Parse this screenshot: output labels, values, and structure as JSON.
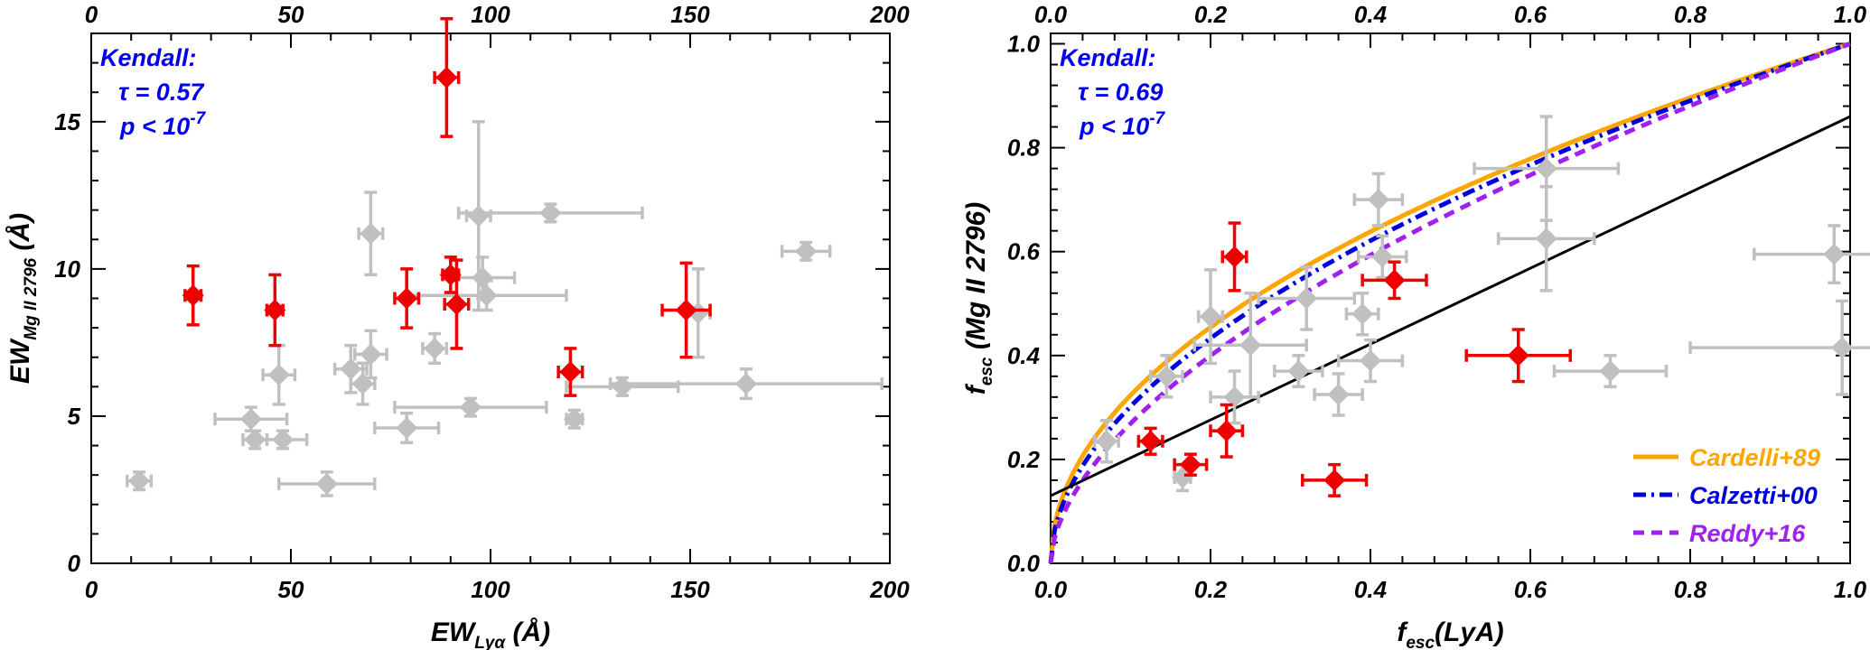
{
  "colors": {
    "red": "#ee0000",
    "gray": "#c0c0c0",
    "orange": "#ffa500",
    "blue": "#0000dd",
    "purple": "#a020f0",
    "black": "#000000",
    "annot": "#0000ee"
  },
  "chart_data": [
    {
      "type": "scatter",
      "xlim": [
        0,
        200
      ],
      "ylim": [
        0,
        18
      ],
      "xticks": [
        "0",
        "50",
        "100",
        "150",
        "200"
      ],
      "xtick_values": [
        0,
        50,
        100,
        150,
        200
      ],
      "yticks": [
        "0",
        "5",
        "10",
        "15"
      ],
      "ytick_values": [
        0,
        5,
        10,
        15
      ],
      "xlabel_main": "EW",
      "xlabel_sub": "Lyα",
      "xlabel_tail": " (Å)",
      "ylabel_main": "EW",
      "ylabel_sub": "Mg II 2796",
      "ylabel_tail": " (Å)",
      "annotation": {
        "title": "Kendall:",
        "tau": "τ = 0.57",
        "p": "p < 10",
        "p_exp": "-7"
      },
      "series": [
        {
          "name": "red",
          "points": [
            {
              "x": 25.5,
              "y": 9.1,
              "xe": 2,
              "ye": 1.0
            },
            {
              "x": 46,
              "y": 8.6,
              "xe": 2,
              "ye": 1.2
            },
            {
              "x": 79,
              "y": 9.0,
              "xe": 3,
              "ye": 1.0
            },
            {
              "x": 89,
              "y": 16.5,
              "xe": 3,
              "ye": 2.0
            },
            {
              "x": 90,
              "y": 9.8,
              "xe": 2,
              "ye": 0.6
            },
            {
              "x": 91.5,
              "y": 8.8,
              "xe": 3,
              "ye": 1.5
            },
            {
              "x": 120,
              "y": 6.5,
              "xe": 3,
              "ye": 0.8
            },
            {
              "x": 149,
              "y": 8.6,
              "xe": 6,
              "ye": 1.6
            }
          ]
        },
        {
          "name": "gray",
          "points": [
            {
              "x": 12,
              "y": 2.8,
              "xe": 3,
              "ye": 0.3
            },
            {
              "x": 40,
              "y": 4.9,
              "xe": 9,
              "ye": 0.4
            },
            {
              "x": 41,
              "y": 4.2,
              "xe": 3,
              "ye": 0.3
            },
            {
              "x": 47,
              "y": 6.4,
              "xe": 4,
              "ye": 1.0
            },
            {
              "x": 48,
              "y": 4.2,
              "xe": 6,
              "ye": 0.3
            },
            {
              "x": 59,
              "y": 2.7,
              "xe": 12,
              "ye": 0.4
            },
            {
              "x": 65,
              "y": 6.6,
              "xe": 4,
              "ye": 0.8
            },
            {
              "x": 68,
              "y": 6.1,
              "xe": 3,
              "ye": 0.7
            },
            {
              "x": 70,
              "y": 7.1,
              "xe": 4,
              "ye": 0.8
            },
            {
              "x": 70,
              "y": 11.2,
              "xe": 3,
              "ye": 1.4
            },
            {
              "x": 79,
              "y": 4.6,
              "xe": 8,
              "ye": 0.5
            },
            {
              "x": 86,
              "y": 7.3,
              "xe": 3,
              "ye": 0.5
            },
            {
              "x": 95,
              "y": 5.3,
              "xe": 19,
              "ye": 0.3
            },
            {
              "x": 97,
              "y": 11.8,
              "xe": 3,
              "ye": 3.2
            },
            {
              "x": 98,
              "y": 9.7,
              "xe": 8,
              "ye": 0.7
            },
            {
              "x": 99,
              "y": 9.1,
              "xe": 20,
              "ye": 0.5
            },
            {
              "x": 115,
              "y": 11.9,
              "xe": 23,
              "ye": 0.3
            },
            {
              "x": 121,
              "y": 4.9,
              "xe": 2,
              "ye": 0.3
            },
            {
              "x": 133,
              "y": 6.0,
              "xe": 14,
              "ye": 0.3
            },
            {
              "x": 152,
              "y": 8.5,
              "xe": 3,
              "ye": 1.5
            },
            {
              "x": 164,
              "y": 6.1,
              "xe": 34,
              "ye": 0.5
            },
            {
              "x": 179,
              "y": 10.6,
              "xe": 6,
              "ye": 0.3
            }
          ]
        }
      ]
    },
    {
      "type": "scatter",
      "xlim": [
        0,
        1
      ],
      "ylim": [
        0,
        1.02
      ],
      "xticks": [
        "0.0",
        "0.2",
        "0.4",
        "0.6",
        "0.8",
        "1.0"
      ],
      "xtick_values": [
        0,
        0.2,
        0.4,
        0.6,
        0.8,
        1.0
      ],
      "yticks": [
        "0.0",
        "0.2",
        "0.4",
        "0.6",
        "0.8",
        "1.0"
      ],
      "ytick_values": [
        0,
        0.2,
        0.4,
        0.6,
        0.8,
        1.0
      ],
      "xlabel_main": "f",
      "xlabel_sub": "esc",
      "xlabel_tail": "(LyA)",
      "ylabel_main": "f",
      "ylabel_sub": "esc",
      "ylabel_tail": " (Mg II 2796)",
      "annotation": {
        "title": "Kendall:",
        "tau": "τ = 0.69",
        "p": "p < 10",
        "p_exp": "-7"
      },
      "legend": [
        {
          "name": "Cardelli+89",
          "color": "#ffa500",
          "style": "solid"
        },
        {
          "name": "Calzetti+00",
          "color": "#0000dd",
          "style": "dashdot"
        },
        {
          "name": "Reddy+16",
          "color": "#a020f0",
          "style": "dashed"
        }
      ],
      "curves": [
        {
          "name": "Cardelli+89",
          "exponent": 0.49
        },
        {
          "name": "Calzetti+00",
          "exponent": 0.52
        },
        {
          "name": "Reddy+16",
          "exponent": 0.57
        }
      ],
      "fit_line": {
        "intercept": 0.13,
        "slope": 0.73
      },
      "series": [
        {
          "name": "red",
          "points": [
            {
              "x": 0.125,
              "y": 0.235,
              "xe": 0.015,
              "ye": 0.025
            },
            {
              "x": 0.175,
              "y": 0.19,
              "xe": 0.02,
              "ye": 0.02
            },
            {
              "x": 0.22,
              "y": 0.255,
              "xe": 0.02,
              "ye": 0.05
            },
            {
              "x": 0.23,
              "y": 0.59,
              "xe": 0.015,
              "ye": 0.065
            },
            {
              "x": 0.355,
              "y": 0.16,
              "xe": 0.04,
              "ye": 0.03
            },
            {
              "x": 0.43,
              "y": 0.545,
              "xe": 0.04,
              "ye": 0.035
            },
            {
              "x": 0.585,
              "y": 0.4,
              "xe": 0.065,
              "ye": 0.05
            }
          ]
        },
        {
          "name": "gray",
          "points": [
            {
              "x": 0.07,
              "y": 0.235,
              "xe": 0.015,
              "ye": 0.04
            },
            {
              "x": 0.145,
              "y": 0.36,
              "xe": 0.02,
              "ye": 0.04
            },
            {
              "x": 0.165,
              "y": 0.165,
              "xe": 0.01,
              "ye": 0.025
            },
            {
              "x": 0.2,
              "y": 0.475,
              "xe": 0.015,
              "ye": 0.09
            },
            {
              "x": 0.23,
              "y": 0.32,
              "xe": 0.03,
              "ye": 0.05
            },
            {
              "x": 0.25,
              "y": 0.42,
              "xe": 0.07,
              "ye": 0.1
            },
            {
              "x": 0.31,
              "y": 0.37,
              "xe": 0.03,
              "ye": 0.03
            },
            {
              "x": 0.36,
              "y": 0.325,
              "xe": 0.03,
              "ye": 0.04
            },
            {
              "x": 0.32,
              "y": 0.51,
              "xe": 0.06,
              "ye": 0.06
            },
            {
              "x": 0.39,
              "y": 0.48,
              "xe": 0.02,
              "ye": 0.04
            },
            {
              "x": 0.4,
              "y": 0.39,
              "xe": 0.04,
              "ye": 0.04
            },
            {
              "x": 0.41,
              "y": 0.7,
              "xe": 0.03,
              "ye": 0.05
            },
            {
              "x": 0.415,
              "y": 0.59,
              "xe": 0.03,
              "ye": 0.04
            },
            {
              "x": 0.62,
              "y": 0.76,
              "xe": 0.09,
              "ye": 0.1
            },
            {
              "x": 0.62,
              "y": 0.625,
              "xe": 0.06,
              "ye": 0.1
            },
            {
              "x": 0.7,
              "y": 0.37,
              "xe": 0.07,
              "ye": 0.03
            },
            {
              "x": 0.98,
              "y": 0.595,
              "xe": 0.1,
              "ye": 0.055
            },
            {
              "x": 0.99,
              "y": 0.415,
              "xe": 0.19,
              "ye": 0.09
            }
          ]
        }
      ]
    }
  ]
}
